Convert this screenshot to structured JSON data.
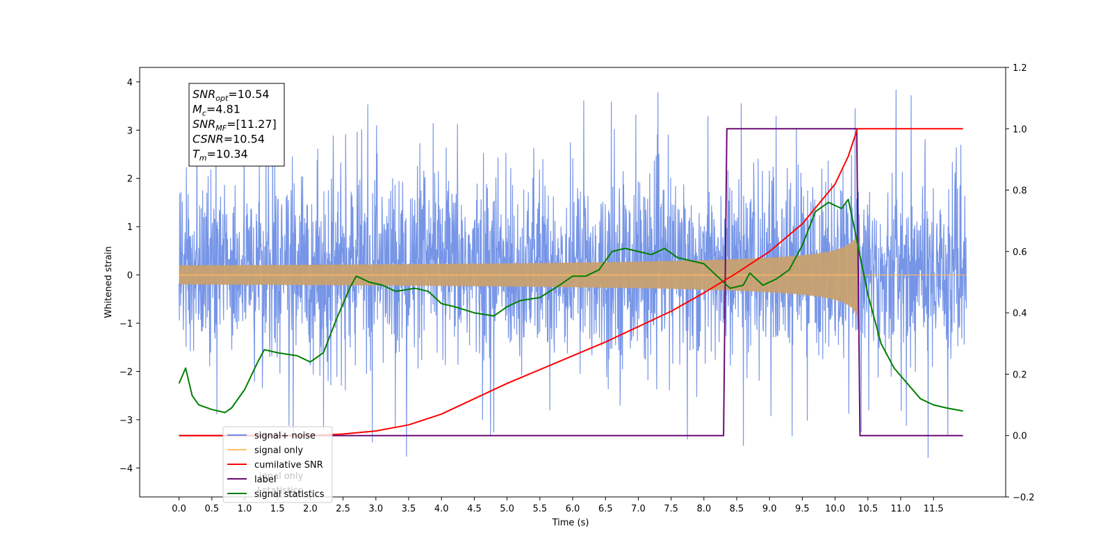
{
  "chart_data": {
    "type": "line",
    "xlabel": "Time (s)",
    "ylabel": "Whitened strain",
    "xlim": [
      -0.6,
      12.6
    ],
    "ylim": [
      -4.6,
      4.3
    ],
    "y2lim": [
      -0.2,
      1.2
    ],
    "xticks": [
      "0.0",
      "0.5",
      "1.0",
      "1.5",
      "2.0",
      "2.5",
      "3.0",
      "3.5",
      "4.0",
      "4.5",
      "5.0",
      "5.5",
      "6.0",
      "6.5",
      "7.0",
      "7.5",
      "8.0",
      "8.5",
      "9.0",
      "9.5",
      "10.0",
      "10.5",
      "11.0",
      "11.5"
    ],
    "yticks": [
      "4",
      "3",
      "2",
      "1",
      "0",
      "−1",
      "−2",
      "−3",
      "−4"
    ],
    "y2ticks": [
      "1.2",
      "1.0",
      "0.8",
      "0.6",
      "0.4",
      "0.2",
      "0.0",
      "−0.2"
    ],
    "grid": false,
    "legend_location": "lower-left",
    "colors": {
      "signal_noise": "#6f8fe6",
      "signal_only": "#ffc060",
      "signal_fill": "#c8a070",
      "cumulative_snr": "#ff0000",
      "label": "#6a0a73",
      "signal_statistics": "#007f00"
    },
    "series": [
      {
        "name": "signal+ noise",
        "axis": "left",
        "kind": "noise",
        "x_range": [
          0.0,
          12.0
        ],
        "amplitude_band": [
          -1.0,
          1.6
        ],
        "peak_range": [
          -4.1,
          3.9
        ]
      },
      {
        "name": "signal only",
        "axis": "left",
        "kind": "chirp",
        "x_start": 0.0,
        "merger_time": 10.34,
        "end_amplitude": 0.85
      },
      {
        "name": "cumilative SNR",
        "axis": "right",
        "x": [
          0.0,
          2.0,
          2.5,
          3.0,
          3.5,
          4.0,
          4.5,
          5.0,
          5.5,
          6.0,
          6.5,
          7.0,
          7.5,
          8.0,
          8.5,
          9.0,
          9.5,
          10.0,
          10.2,
          10.34,
          10.35,
          11.5,
          11.95
        ],
        "y": [
          0.0,
          0.0,
          0.005,
          0.015,
          0.035,
          0.07,
          0.12,
          0.17,
          0.215,
          0.26,
          0.305,
          0.355,
          0.405,
          0.465,
          0.53,
          0.6,
          0.69,
          0.82,
          0.91,
          1.0,
          1.0,
          1.0,
          1.0
        ]
      },
      {
        "name": "label",
        "axis": "right",
        "x": [
          0.0,
          8.3,
          8.35,
          10.33,
          10.38,
          11.95
        ],
        "y": [
          0.0,
          0.0,
          1.0,
          1.0,
          0.0,
          0.0
        ]
      },
      {
        "name": "signal statistics",
        "axis": "right",
        "x": [
          0.0,
          0.1,
          0.2,
          0.3,
          0.5,
          0.7,
          0.8,
          1.0,
          1.2,
          1.3,
          1.5,
          1.8,
          2.0,
          2.2,
          2.4,
          2.6,
          2.7,
          2.9,
          3.1,
          3.3,
          3.6,
          3.8,
          4.0,
          4.2,
          4.5,
          4.8,
          5.0,
          5.2,
          5.5,
          5.8,
          6.0,
          6.2,
          6.4,
          6.6,
          6.8,
          7.0,
          7.2,
          7.4,
          7.6,
          7.8,
          8.0,
          8.2,
          8.4,
          8.6,
          8.7,
          8.9,
          9.1,
          9.3,
          9.5,
          9.7,
          9.9,
          10.1,
          10.2,
          10.3,
          10.5,
          10.7,
          10.9,
          11.1,
          11.3,
          11.5,
          11.7,
          11.95
        ],
        "y": [
          0.17,
          0.22,
          0.13,
          0.1,
          0.085,
          0.075,
          0.09,
          0.15,
          0.24,
          0.28,
          0.27,
          0.26,
          0.24,
          0.27,
          0.38,
          0.48,
          0.52,
          0.5,
          0.49,
          0.47,
          0.48,
          0.47,
          0.43,
          0.42,
          0.4,
          0.39,
          0.42,
          0.44,
          0.45,
          0.49,
          0.52,
          0.52,
          0.54,
          0.6,
          0.61,
          0.6,
          0.59,
          0.61,
          0.58,
          0.57,
          0.56,
          0.52,
          0.48,
          0.49,
          0.53,
          0.49,
          0.51,
          0.54,
          0.62,
          0.73,
          0.76,
          0.74,
          0.77,
          0.67,
          0.46,
          0.3,
          0.22,
          0.17,
          0.12,
          0.1,
          0.09,
          0.08
        ]
      }
    ],
    "annotation": [
      {
        "name": "SNR",
        "sub": "opt",
        "value": "=10.54"
      },
      {
        "name": "M",
        "sub": "c",
        "value": "=4.81"
      },
      {
        "name": "SNR",
        "sub": "MF",
        "value": "=[11.27]"
      },
      {
        "name": "CSNR",
        "sub": "",
        "value": "=10.54"
      },
      {
        "name": "T",
        "sub": "m",
        "value": "=10.34"
      }
    ],
    "legend": [
      {
        "label": "signal+ noise",
        "color": "#6f8fe6"
      },
      {
        "label": "signal only",
        "color": "#ffc060"
      },
      {
        "label": "cumilative SNR",
        "color": "#ff0000"
      },
      {
        "label": "label",
        "color": "#6a0a73"
      },
      {
        "label": "signal statistics",
        "color": "#007f00"
      }
    ],
    "legend_hidden_text": [
      "ignal only",
      "l statistics"
    ]
  }
}
